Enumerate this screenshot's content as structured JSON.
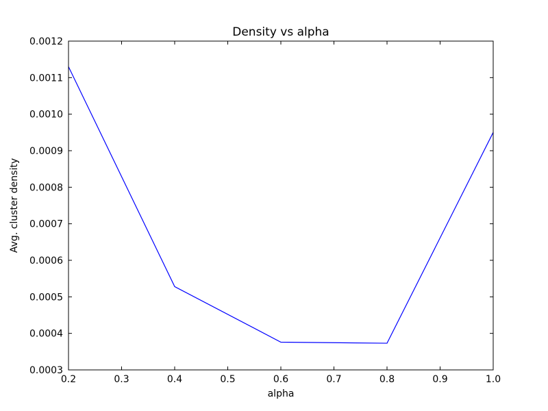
{
  "chart_data": {
    "type": "line",
    "title": "Density vs alpha",
    "xlabel": "alpha",
    "ylabel": "Avg. cluster density",
    "xlim": [
      0.2,
      1.0
    ],
    "ylim": [
      0.0003,
      0.0012
    ],
    "xticks": [
      "0.2",
      "0.3",
      "0.4",
      "0.5",
      "0.6",
      "0.7",
      "0.8",
      "0.9",
      "1.0"
    ],
    "yticks": [
      "0.0003",
      "0.0004",
      "0.0005",
      "0.0006",
      "0.0007",
      "0.0008",
      "0.0009",
      "0.0010",
      "0.0011",
      "0.0012"
    ],
    "grid": false,
    "series": [
      {
        "color": "#0000ff",
        "x": [
          0.2,
          0.4,
          0.6,
          0.8,
          1.0
        ],
        "y": [
          0.00113,
          0.000528,
          0.000376,
          0.000373,
          0.00095
        ]
      }
    ]
  }
}
